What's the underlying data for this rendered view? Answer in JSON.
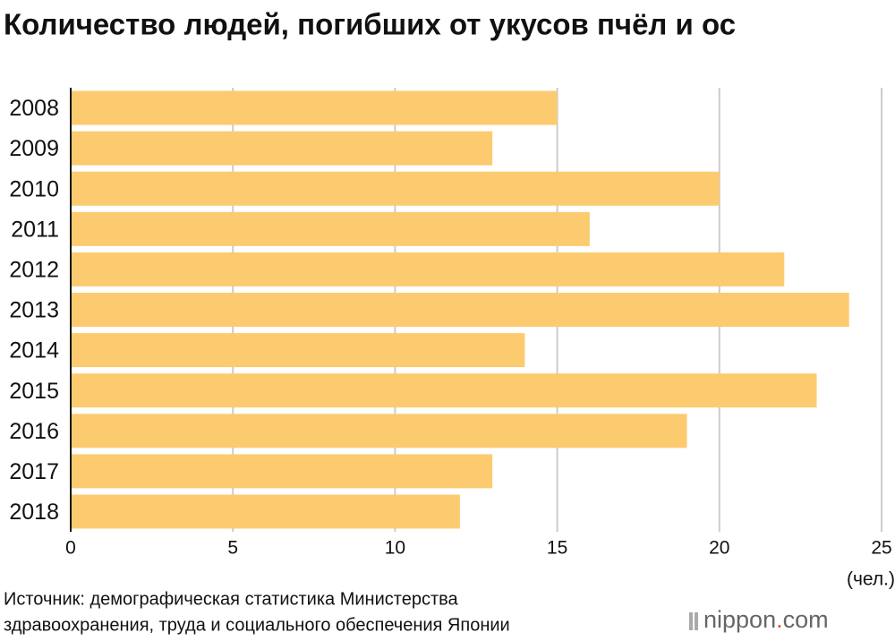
{
  "chart_data": {
    "type": "bar",
    "orientation": "horizontal",
    "title": "Количество людей, погибших от укусов пчёл и ос",
    "categories": [
      "2008",
      "2009",
      "2010",
      "2011",
      "2012",
      "2013",
      "2014",
      "2015",
      "2016",
      "2017",
      "2018"
    ],
    "values": [
      15,
      13,
      20,
      16,
      22,
      24,
      14,
      23,
      19,
      13,
      12
    ],
    "color": "#fccb70",
    "xlim": [
      0,
      25
    ],
    "xticks": [
      0,
      5,
      10,
      15,
      20,
      25
    ],
    "grid": true,
    "unit": "(чел.)",
    "source": [
      "Источник: демографическая статистика Министерства",
      "здравоохранения, труда и социального обеспечения Японии"
    ]
  },
  "logo": [
    "nippon",
    ".",
    "com"
  ]
}
